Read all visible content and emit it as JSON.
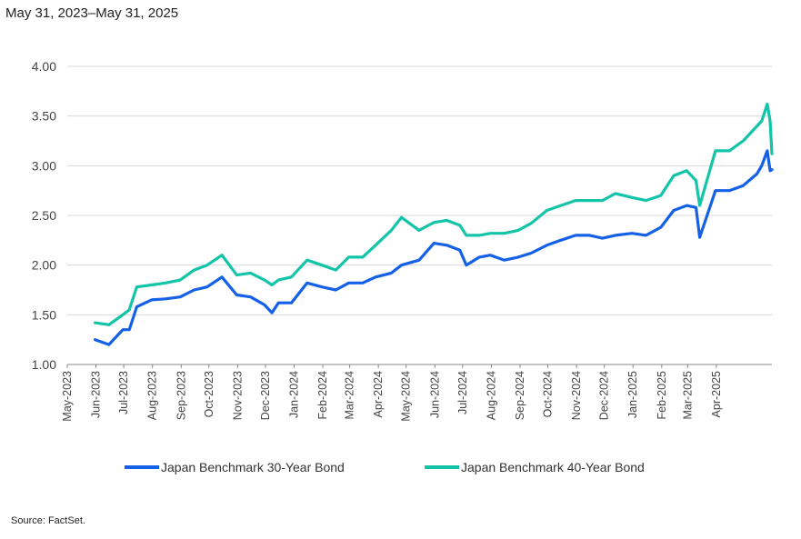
{
  "chart_data": {
    "type": "line",
    "subtitle": "May 31, 2023–May 31, 2025",
    "source": "Source: FactSet.",
    "ylim": [
      1.0,
      4.0
    ],
    "y_ticks": [
      "1.00",
      "1.50",
      "2.00",
      "2.50",
      "3.00",
      "3.50",
      "4.00"
    ],
    "x_tick_labels": [
      "May-2023",
      "Jun-2023",
      "Jul-2023",
      "Aug-2023",
      "Sep-2023",
      "Oct-2023",
      "Nov-2023",
      "Dec-2023",
      "Jan-2024",
      "Feb-2024",
      "Mar-2024",
      "Apr-2024",
      "May-2024",
      "Jun-2024",
      "Jul-2024",
      "Aug-2024",
      "Sep-2024",
      "Oct-2024",
      "Nov-2024",
      "Dec-2024",
      "Jan-2025",
      "Feb-2025",
      "Mar-2025",
      "Apr-2025"
    ],
    "grid": true,
    "legend_position": "bottom",
    "x": [
      "2023-05-31",
      "2023-06-15",
      "2023-06-30",
      "2023-07-07",
      "2023-07-15",
      "2023-07-31",
      "2023-08-15",
      "2023-08-31",
      "2023-09-15",
      "2023-09-29",
      "2023-10-15",
      "2023-10-31",
      "2023-11-15",
      "2023-11-30",
      "2023-12-08",
      "2023-12-15",
      "2023-12-29",
      "2024-01-15",
      "2024-01-31",
      "2024-02-15",
      "2024-02-29",
      "2024-03-15",
      "2024-03-29",
      "2024-04-15",
      "2024-04-26",
      "2024-05-15",
      "2024-05-31",
      "2024-06-14",
      "2024-06-28",
      "2024-07-05",
      "2024-07-19",
      "2024-07-31",
      "2024-08-15",
      "2024-08-30",
      "2024-09-13",
      "2024-09-30",
      "2024-10-15",
      "2024-10-31",
      "2024-11-15",
      "2024-11-29",
      "2024-12-13",
      "2024-12-31",
      "2025-01-15",
      "2025-01-31",
      "2025-02-14",
      "2025-02-28",
      "2025-03-10",
      "2025-03-14",
      "2025-03-31",
      "2025-04-15",
      "2025-04-30",
      "2025-05-15",
      "2025-05-20",
      "2025-05-26",
      "2025-05-29",
      "2025-05-31"
    ],
    "series": [
      {
        "name": "Japan Benchmark 30-Year Bond",
        "color": "#1460e6",
        "values": [
          1.25,
          1.2,
          1.35,
          1.35,
          1.58,
          1.65,
          1.66,
          1.68,
          1.75,
          1.78,
          1.88,
          1.7,
          1.68,
          1.6,
          1.52,
          1.62,
          1.62,
          1.82,
          1.78,
          1.75,
          1.82,
          1.82,
          1.88,
          1.92,
          2.0,
          2.05,
          2.22,
          2.2,
          2.15,
          2.0,
          2.08,
          2.1,
          2.05,
          2.08,
          2.12,
          2.2,
          2.25,
          2.3,
          2.3,
          2.27,
          2.3,
          2.32,
          2.3,
          2.38,
          2.55,
          2.6,
          2.58,
          2.28,
          2.75,
          2.75,
          2.8,
          2.92,
          3.0,
          3.15,
          2.95,
          2.96
        ]
      },
      {
        "name": "Japan Benchmark 40-Year Bond",
        "color": "#14c4a9",
        "values": [
          1.42,
          1.4,
          1.5,
          1.55,
          1.78,
          1.8,
          1.82,
          1.85,
          1.95,
          2.0,
          2.1,
          1.9,
          1.92,
          1.85,
          1.8,
          1.85,
          1.88,
          2.05,
          2.0,
          1.95,
          2.08,
          2.08,
          2.2,
          2.35,
          2.48,
          2.35,
          2.43,
          2.45,
          2.4,
          2.3,
          2.3,
          2.32,
          2.32,
          2.35,
          2.42,
          2.55,
          2.6,
          2.65,
          2.65,
          2.65,
          2.72,
          2.68,
          2.65,
          2.7,
          2.9,
          2.95,
          2.85,
          2.6,
          3.15,
          3.15,
          3.25,
          3.4,
          3.45,
          3.62,
          3.45,
          3.12
        ]
      }
    ]
  }
}
